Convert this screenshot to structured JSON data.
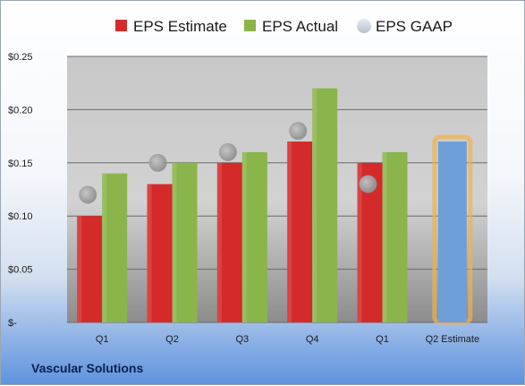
{
  "company": "Vascular Solutions",
  "chart_data": {
    "type": "bar",
    "categories": [
      "Q1",
      "Q2",
      "Q3",
      "Q4",
      "Q1",
      "Q2 Estimate"
    ],
    "series": [
      {
        "name": "EPS Estimate",
        "color": "#d42a2a",
        "marker": "bar",
        "values": [
          0.1,
          0.13,
          0.15,
          0.17,
          0.15,
          null
        ]
      },
      {
        "name": "EPS Actual",
        "color": "#8ab54a",
        "marker": "bar",
        "values": [
          0.14,
          0.15,
          0.16,
          0.22,
          0.16,
          null
        ]
      },
      {
        "name": "EPS GAAP",
        "color": "#a6a6a6",
        "marker": "circle",
        "values": [
          0.12,
          0.15,
          0.16,
          0.18,
          0.13,
          null
        ]
      },
      {
        "name": "",
        "color": "#6f9fd8",
        "highlight": "#f5b04a",
        "marker": "bar",
        "values": [
          null,
          null,
          null,
          null,
          null,
          0.17
        ]
      }
    ],
    "yticks": [
      "$-",
      "$0.05",
      "$0.10",
      "$0.15",
      "$0.20",
      "$0.25"
    ],
    "ylim": [
      0,
      0.25
    ],
    "grid": true,
    "legend": "top",
    "xlabel": "",
    "ylabel": ""
  }
}
